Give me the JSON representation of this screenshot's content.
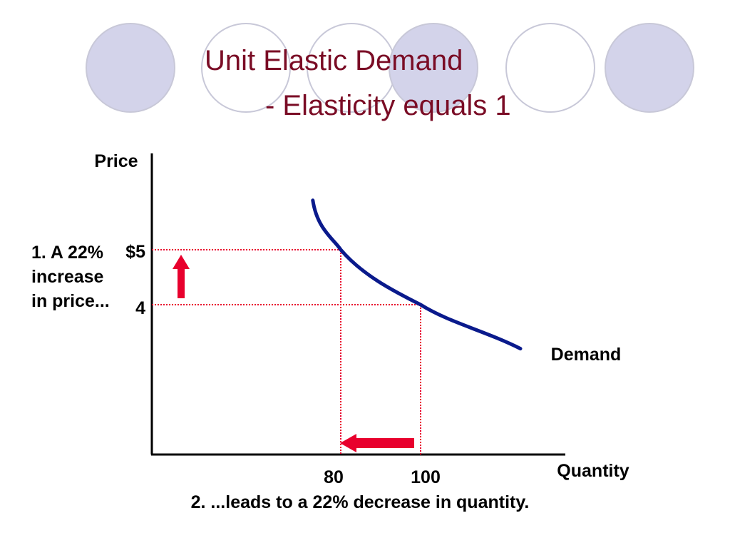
{
  "slide": {
    "title": "Unit Elastic Demand",
    "subtitle": "- Elasticity equals 1",
    "title_color": "#7a0c25",
    "decoration_circles": [
      "filled",
      "outline",
      "outline",
      "filled",
      "outline",
      "filled"
    ],
    "decoration_fill_color": "#d3d3ea",
    "decoration_stroke_color": "#c8c8d8"
  },
  "chart_data": {
    "type": "line",
    "ylabel": "Price",
    "xlabel": "Quantity",
    "y_ticks": [
      "$5",
      "4"
    ],
    "y_tick_values": [
      5,
      4
    ],
    "x_ticks": [
      "80",
      "100"
    ],
    "x_tick_values": [
      80,
      100
    ],
    "series": [
      {
        "name": "Demand",
        "color": "#0a1a8c",
        "points": [
          {
            "q": 73,
            "p": 5.9
          },
          {
            "q": 80,
            "p": 5.0
          },
          {
            "q": 100,
            "p": 4.0
          },
          {
            "q": 125,
            "p": 3.2
          }
        ]
      }
    ],
    "reference_points": [
      {
        "q": 80,
        "p": 5
      },
      {
        "q": 100,
        "p": 4
      }
    ],
    "reference_line_color": "#e8002d",
    "arrow_color": "#e8002d",
    "annotations": {
      "price_change": [
        "1. A 22%",
        "increase",
        "in price..."
      ],
      "quantity_change": "2. ...leads to a 22% decrease in quantity."
    },
    "grid": false
  }
}
